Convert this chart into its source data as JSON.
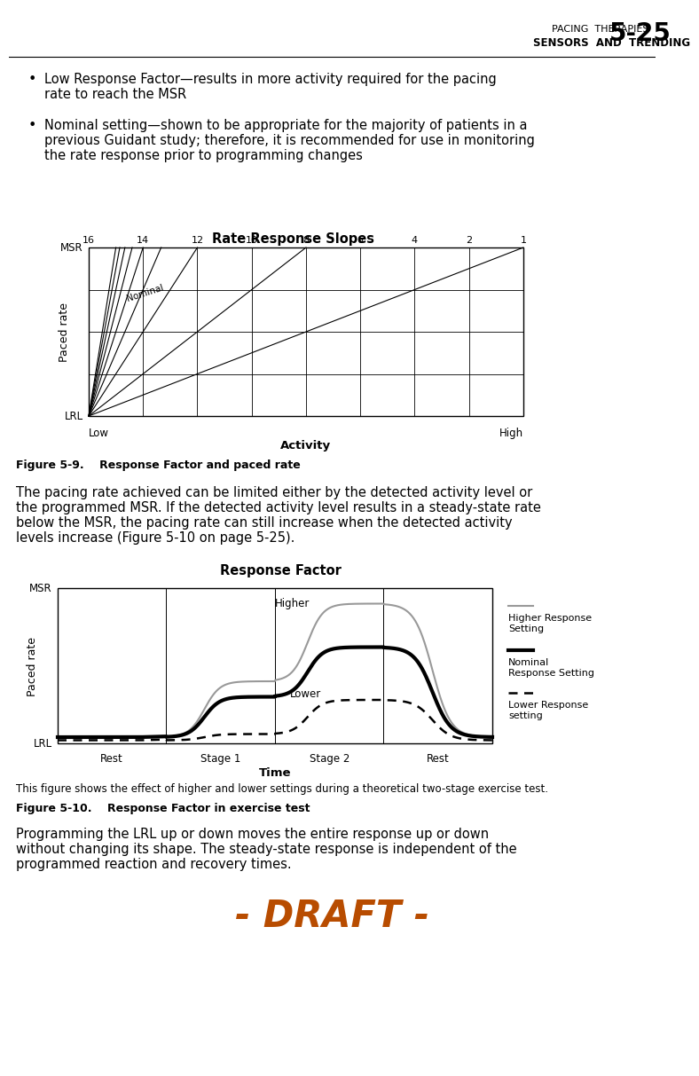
{
  "header_line1": "PACING  THERAPIES",
  "header_line2": "SENSORS  AND  TRENDING",
  "header_page": "5-25",
  "bullet1_line1": "Low Response Factor—results in more activity required for the pacing",
  "bullet1_line2": "rate to reach the MSR",
  "bullet2_line1": "Nominal setting—shown to be appropriate for the majority of patients in a",
  "bullet2_line2": "previous Guidant study; therefore, it is recommended for use in monitoring",
  "bullet2_line3": "the rate response prior to programming changes",
  "fig1_title": "Rate Response Slopes",
  "fig1_slopes": [
    16,
    14,
    12,
    10,
    8,
    6,
    4,
    2,
    1
  ],
  "fig1_nominal_label": "Nominal",
  "fig1_xlabel": "Activity",
  "fig1_ylabel": "Paced rate",
  "fig1_ylabel_top": "MSR",
  "fig1_ylabel_bottom": "LRL",
  "fig1_xlabel_left": "Low",
  "fig1_xlabel_right": "High",
  "fig1_caption": "Figure 5-9.    Response Factor and paced rate",
  "para1_line1": "The pacing rate achieved can be limited either by the detected activity level or",
  "para1_line2": "the programmed MSR. If the detected activity level results in a steady-state rate",
  "para1_line3": "below the MSR, the pacing rate can still increase when the detected activity",
  "para1_line4": "levels increase (Figure 5-10 on page 5-25).",
  "fig2_title": "Response Factor",
  "fig2_xlabel": "Time",
  "fig2_ylabel": "Paced rate",
  "fig2_ylabel_top": "MSR",
  "fig2_ylabel_bottom": "LRL",
  "fig2_xlabel_stages": [
    "Rest",
    "Stage 1",
    "Stage 2",
    "Rest"
  ],
  "fig2_annot_higher": "Higher",
  "fig2_annot_lower": "Lower",
  "fig2_leg1": "Higher Response\nSetting",
  "fig2_leg2": "Nominal\nResponse Setting",
  "fig2_leg3": "Lower Response\nsetting",
  "fig2_caption_small": "This figure shows the effect of higher and lower settings during a theoretical two-stage exercise test.",
  "fig2_caption_bold": "Figure 5-10.    Response Factor in exercise test",
  "para2_line1": "Programming the LRL up or down moves the entire response up or down",
  "para2_line2": "without changing its shape. The steady-state response is independent of the",
  "para2_line3": "programmed reaction and recovery times.",
  "draft_text": "- DRAFT -",
  "bg_color": "#ffffff",
  "text_color": "#000000",
  "gray_color": "#999999",
  "draft_color": "#b84c00"
}
